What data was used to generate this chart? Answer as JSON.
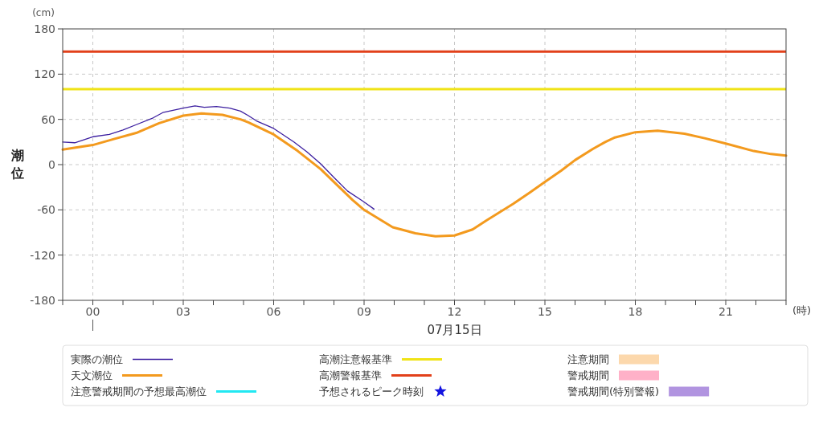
{
  "chart_data": {
    "type": "line",
    "ylabel": "潮位",
    "xlabel": "(時)",
    "annotations": [
      "(cm)",
      "07月15日"
    ],
    "xlim": [
      -1,
      23
    ],
    "xticks": [
      {
        "value": -1,
        "label": null
      },
      {
        "value": 0,
        "label": "00"
      },
      {
        "value": 1,
        "label": null
      },
      {
        "value": 2,
        "label": null
      },
      {
        "value": 3,
        "label": "03"
      },
      {
        "value": 4,
        "label": null
      },
      {
        "value": 5,
        "label": null
      },
      {
        "value": 6,
        "label": "06"
      },
      {
        "value": 7,
        "label": null
      },
      {
        "value": 8,
        "label": null
      },
      {
        "value": 9,
        "label": "09"
      },
      {
        "value": 10,
        "label": null
      },
      {
        "value": 11,
        "label": null
      },
      {
        "value": 12,
        "label": "12"
      },
      {
        "value": 13,
        "label": null
      },
      {
        "value": 14,
        "label": null
      },
      {
        "value": 15,
        "label": "15"
      },
      {
        "value": 16,
        "label": null
      },
      {
        "value": 17,
        "label": null
      },
      {
        "value": 18,
        "label": "18"
      },
      {
        "value": 19,
        "label": null
      },
      {
        "value": 20,
        "label": null
      },
      {
        "value": 21,
        "label": "21"
      },
      {
        "value": 22,
        "label": null
      },
      {
        "value": 23,
        "label": null
      }
    ],
    "ylim": [
      -180,
      180
    ],
    "yticks": [
      -180,
      -120,
      -60,
      0,
      60,
      120,
      180
    ],
    "grid": true,
    "legend": "bottom",
    "series": [
      {
        "name": "実際の潮位",
        "type": "line",
        "color": "#3c1fa0",
        "x": [
          -1,
          -0.6,
          0,
          0.55,
          1,
          1.44,
          2,
          2.32,
          3,
          3.39,
          3.7,
          4.1,
          4.54,
          4.9,
          5.16,
          5.43,
          6,
          6.67,
          7.1,
          7.56,
          8,
          8.45,
          8.98,
          9.33
        ],
        "values": [
          30,
          29,
          37,
          40,
          46,
          53,
          62,
          69,
          75,
          78,
          76,
          77,
          75,
          71,
          65,
          58,
          48,
          30,
          17,
          1,
          -17,
          -35,
          -49,
          -59
        ]
      },
      {
        "name": "天文潮位",
        "type": "line",
        "color": "#f39a1e",
        "x": [
          -1,
          0,
          0.7,
          1.44,
          2.2,
          3,
          3.6,
          4.3,
          4.9,
          5.16,
          6,
          6.8,
          7.56,
          8.62,
          9,
          9.95,
          10.7,
          11.37,
          12,
          12.6,
          13.06,
          13.95,
          14.5,
          15,
          15.54,
          16,
          16.6,
          17,
          17.32,
          18,
          18.74,
          19.63,
          20.3,
          21,
          21.93,
          22.5,
          23
        ],
        "values": [
          20,
          26,
          34,
          42,
          55,
          65,
          68,
          66,
          60,
          56,
          40,
          18,
          -6,
          -47,
          -60,
          -83,
          -91,
          -95,
          -94,
          -86,
          -74,
          -52,
          -37,
          -23,
          -8,
          6,
          21,
          30,
          36,
          43,
          45,
          41,
          35,
          28,
          18,
          14,
          12
        ]
      },
      {
        "name": "注意警戒期間の予想最高潮位",
        "type": "line",
        "color": "#22e8f2"
      },
      {
        "name": "予想されるピーク時刻",
        "type": "scatter",
        "marker": "star",
        "color": "#1414e0"
      },
      {
        "name": "注意期間",
        "type": "area",
        "color": "#fcd8ac"
      },
      {
        "name": "警戒期間",
        "type": "area",
        "color": "#ffb1c8"
      },
      {
        "name": "警戒期間(特別警報)",
        "type": "area",
        "color": "#b194e0"
      }
    ],
    "ref_lines": [
      {
        "axis": "y",
        "value": 100,
        "label": "高潮注意報基準",
        "color": "#f0e316"
      },
      {
        "axis": "y",
        "value": 150,
        "label": "高潮警報基準",
        "color": "#e2401a"
      }
    ]
  }
}
